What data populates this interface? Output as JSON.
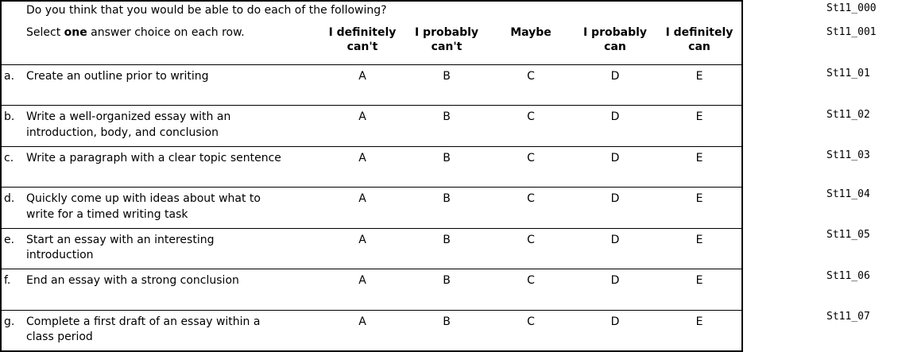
{
  "table": {
    "question": "Do you think that you would be able to do each of the following?",
    "instruction": {
      "prefix": "Select ",
      "bold": "one",
      "suffix": " answer choice on each row."
    },
    "column_headers": [
      {
        "line1": "I definitely",
        "line2": "can't"
      },
      {
        "line1": "I probably",
        "line2": "can't"
      },
      {
        "line1": "Maybe",
        "line2": ""
      },
      {
        "line1": "I probably",
        "line2": "can"
      },
      {
        "line1": "I definitely",
        "line2": "can"
      }
    ],
    "choice_letters": [
      "A",
      "B",
      "C",
      "D",
      "E"
    ],
    "rows": [
      {
        "letter": "a.",
        "text": "Create an outline prior to writing"
      },
      {
        "letter": "b.",
        "text": "Write a well-organized essay with an\nintroduction, body, and conclusion"
      },
      {
        "letter": "c.",
        "text": "Write a paragraph with a clear topic sentence"
      },
      {
        "letter": "d.",
        "text": "Quickly come up with ideas about what to\nwrite for a timed writing task"
      },
      {
        "letter": "e.",
        "text": "Start an essay with an interesting\nintroduction"
      },
      {
        "letter": "f.",
        "text": "End an essay with a strong conclusion"
      },
      {
        "letter": "g.",
        "text": "Complete a first draft of an essay within a\nclass period"
      }
    ]
  },
  "variable_labels": {
    "items": [
      "St11_000",
      "St11_001",
      "St11_01",
      "St11_02",
      "St11_03",
      "St11_04",
      "St11_05",
      "St11_06",
      "St11_07"
    ]
  },
  "colors": {
    "background": "#ffffff",
    "text": "#000000",
    "border": "#000000"
  }
}
